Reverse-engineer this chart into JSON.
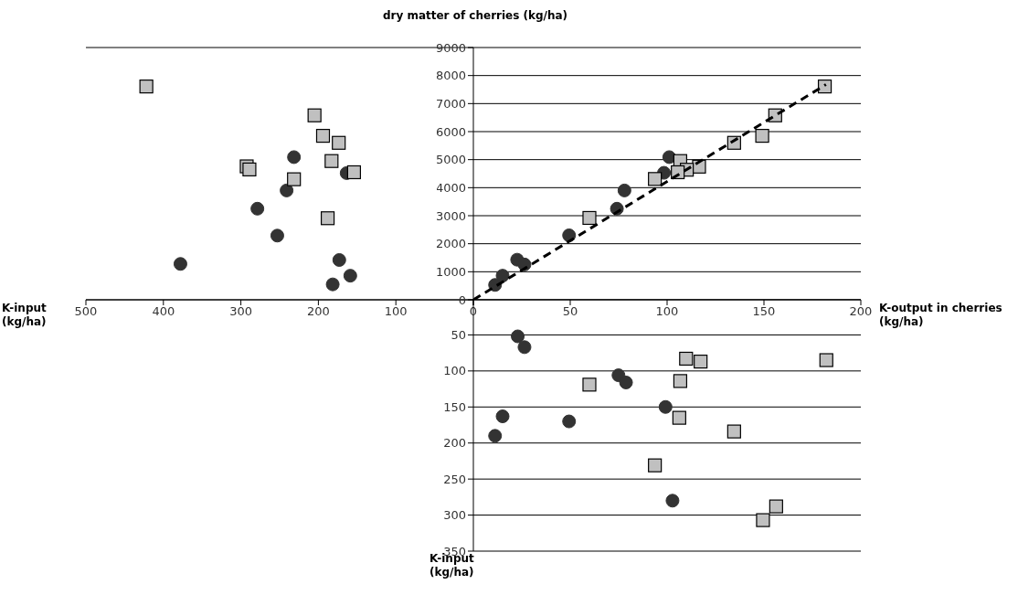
{
  "chart_data": [
    {
      "type": "scatter",
      "xlabel": "K-input (kg/ha)",
      "xlim": [
        500,
        0
      ],
      "xticks": [
        500,
        400,
        300,
        200,
        100,
        {
          "value": 0,
          "label": null
        }
      ],
      "ylim": [
        0,
        9000
      ],
      "yticks": [
        0,
        1000,
        2000,
        3000,
        4000,
        5000,
        6000,
        7000,
        8000,
        9000
      ],
      "tick_labels": "x",
      "grid": "y",
      "series": [
        {
          "marker": "circle",
          "color": "#333333",
          "x": [
            378,
            278.7,
            253,
            241,
            231.5,
            163.5,
            173,
            158.8,
            181.5
          ],
          "values": [
            1280,
            3250,
            2290,
            3900,
            5090,
            4520,
            1420,
            860,
            550
          ]
        },
        {
          "marker": "square",
          "color": "#c0c0c0",
          "x": [
            422,
            205,
            194,
            173.7,
            183,
            292.5,
            289,
            231.5,
            154,
            188
          ],
          "values": [
            7610,
            6580,
            5850,
            5600,
            4950,
            4760,
            4650,
            4300,
            4550,
            2910
          ]
        }
      ]
    },
    {
      "type": "scatter",
      "ylabel": "dry matter of cherries (kg/ha)",
      "xlabel": "K-output in cherries (kg/ha)",
      "xlim": [
        0,
        200
      ],
      "xticks": [
        0,
        50,
        100,
        150,
        200
      ],
      "ylim": [
        0,
        9000
      ],
      "yticks": [
        0,
        1000,
        2000,
        3000,
        4000,
        5000,
        6000,
        7000,
        8000,
        9000
      ],
      "grid": "y",
      "series": [
        {
          "marker": "circle",
          "color": "#333333",
          "x": [
            11.2,
            15.1,
            22.6,
            26.4,
            49.4,
            74.1,
            78,
            98.4,
            101.1
          ],
          "values": [
            530,
            860,
            1430,
            1260,
            2300,
            3250,
            3900,
            4530,
            5090
          ]
        },
        {
          "marker": "square",
          "color": "#c0c0c0",
          "x": [
            181.4,
            155.8,
            149.1,
            134.6,
            106.8,
            116.5,
            110.2,
            105.5,
            93.7,
            59.9
          ],
          "values": [
            7610,
            6580,
            5850,
            5600,
            4950,
            4750,
            4640,
            4550,
            4310,
            2920
          ]
        },
        {
          "type": "line",
          "marker": "none",
          "line_style": "dashed",
          "color": "#000000",
          "x": [
            0,
            182
          ],
          "values": [
            0,
            7680
          ]
        }
      ]
    },
    {
      "type": "scatter",
      "ylabel": "K-input (kg/ha)",
      "xlim": [
        0,
        200
      ],
      "ylim": [
        350,
        0
      ],
      "yticks": [
        50,
        100,
        150,
        200,
        250,
        300,
        350
      ],
      "tick_labels": "y",
      "grid": "y",
      "series": [
        {
          "marker": "circle",
          "color": "#333333",
          "x": [
            22.9,
            26.4,
            74.9,
            78.8,
            99.2,
            15.1,
            11.2,
            49.4,
            102.8
          ],
          "values": [
            52,
            67,
            106,
            116,
            150,
            163,
            190,
            170,
            280
          ]
        },
        {
          "marker": "square",
          "color": "#c0c0c0",
          "x": [
            109.8,
            117.3,
            182.2,
            59.9,
            106.8,
            106.3,
            134.6,
            93.7,
            156.3,
            149.5
          ],
          "values": [
            83,
            87,
            85,
            119,
            114,
            165,
            184,
            231,
            288,
            307
          ]
        }
      ]
    }
  ]
}
